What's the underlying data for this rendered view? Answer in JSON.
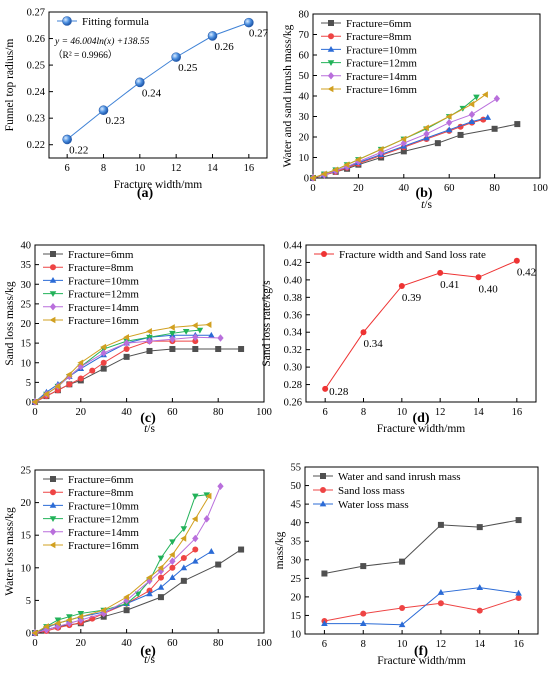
{
  "chart_data": [
    {
      "panel": "(a)",
      "type": "line",
      "xlabel": "Fracture width/mm",
      "ylabel": "Funnel top radius/m",
      "xlim": [
        5,
        17
      ],
      "ylim": [
        0.215,
        0.27
      ],
      "xticks": [
        6,
        8,
        10,
        12,
        14,
        16
      ],
      "yticks": [
        0.22,
        0.23,
        0.24,
        0.25,
        0.26,
        0.27
      ],
      "ytick_decimals": 2,
      "grid": false,
      "legend_position": "top-left",
      "series": [
        {
          "name": "Fitting formula",
          "color": "#3f82d6",
          "marker": "sphere",
          "x": [
            6,
            8,
            10,
            12,
            14,
            16
          ],
          "y": [
            0.222,
            0.233,
            0.2435,
            0.253,
            0.261,
            0.266
          ],
          "labels": [
            "0.22",
            "0.23",
            "0.24",
            "0.25",
            "0.26",
            "0.27"
          ]
        }
      ],
      "equation": "y = 46.004ln(x) +138.55",
      "r2": "（R² = 0.9966）"
    },
    {
      "panel": "(b)",
      "type": "line",
      "xlabel": "t/s",
      "ylabel": "Water and sand inrush mass/kg",
      "xlim": [
        0,
        100
      ],
      "ylim": [
        0,
        80
      ],
      "xticks": [
        0,
        20,
        40,
        60,
        80,
        100
      ],
      "yticks": [
        0,
        10,
        20,
        30,
        40,
        50,
        60,
        70,
        80
      ],
      "ytick_decimals": 0,
      "grid": false,
      "legend_position": "top-left",
      "series": [
        {
          "name": "Fracture=6mm",
          "color": "#505050",
          "marker": "square",
          "x": [
            0,
            5,
            10,
            15,
            20,
            30,
            40,
            55,
            65,
            80,
            90
          ],
          "y": [
            0,
            1.5,
            3,
            4.5,
            6.5,
            10,
            13,
            17,
            21,
            24,
            26.3
          ]
        },
        {
          "name": "Fracture=8mm",
          "color": "#ee4444",
          "marker": "circle",
          "x": [
            0,
            5,
            10,
            15,
            20,
            30,
            40,
            50,
            60,
            65,
            70,
            75
          ],
          "y": [
            0,
            1.5,
            3,
            5,
            7,
            11,
            15,
            19,
            23,
            25,
            27,
            28.5
          ]
        },
        {
          "name": "Fracture=10mm",
          "color": "#2b6bd6",
          "marker": "triangle",
          "x": [
            0,
            5,
            10,
            15,
            20,
            30,
            40,
            50,
            60,
            70,
            77
          ],
          "y": [
            0,
            1.5,
            3.5,
            5.5,
            7.5,
            11.5,
            15.5,
            19.5,
            23.5,
            27.5,
            29.5
          ]
        },
        {
          "name": "Fracture=12mm",
          "color": "#22b259",
          "marker": "triangle-down",
          "x": [
            0,
            5,
            10,
            15,
            20,
            30,
            40,
            50,
            60,
            66,
            72
          ],
          "y": [
            0,
            2,
            4,
            6.5,
            9,
            14,
            19,
            24,
            30,
            34,
            39.5
          ]
        },
        {
          "name": "Fracture=14mm",
          "color": "#b96fdc",
          "marker": "diamond",
          "x": [
            0,
            5,
            10,
            15,
            20,
            30,
            40,
            50,
            60,
            70,
            81
          ],
          "y": [
            0,
            1.5,
            3.5,
            5.5,
            8,
            12.5,
            17,
            21.5,
            27,
            31,
            38.7
          ]
        },
        {
          "name": "Fracture=16mm",
          "color": "#d1a020",
          "marker": "triangle-left",
          "x": [
            0,
            5,
            10,
            15,
            20,
            30,
            40,
            50,
            60,
            70,
            76
          ],
          "y": [
            0,
            2,
            4,
            6.5,
            9,
            14,
            19,
            24.5,
            30,
            36,
            40.7
          ]
        }
      ]
    },
    {
      "panel": "(c)",
      "type": "line",
      "xlabel": "t/s",
      "ylabel": "Sand loss mass/kg",
      "xlim": [
        0,
        100
      ],
      "ylim": [
        0,
        40
      ],
      "xticks": [
        0,
        20,
        40,
        60,
        80,
        100
      ],
      "yticks": [
        0,
        5,
        10,
        15,
        20,
        25,
        30,
        35,
        40
      ],
      "ytick_decimals": 0,
      "grid": false,
      "legend_position": "top-left",
      "series": [
        {
          "name": "Fracture=6mm",
          "color": "#505050",
          "marker": "square",
          "x": [
            0,
            5,
            10,
            15,
            20,
            30,
            40,
            50,
            60,
            70,
            80,
            90
          ],
          "y": [
            0,
            1.5,
            3,
            4.5,
            5.5,
            8.5,
            11.5,
            13,
            13.5,
            13.5,
            13.5,
            13.5
          ]
        },
        {
          "name": "Fracture=8mm",
          "color": "#ee4444",
          "marker": "circle",
          "x": [
            0,
            5,
            10,
            15,
            20,
            25,
            30,
            40,
            50,
            60,
            70
          ],
          "y": [
            0,
            1.5,
            3,
            4.5,
            6,
            8,
            10,
            13.5,
            15.5,
            15.5,
            15.5
          ]
        },
        {
          "name": "Fracture=10mm",
          "color": "#2b6bd6",
          "marker": "triangle",
          "x": [
            0,
            5,
            10,
            15,
            20,
            30,
            40,
            50,
            60,
            70,
            77
          ],
          "y": [
            0,
            2.5,
            4.5,
            6.5,
            8.5,
            12,
            15,
            16.5,
            17,
            17,
            17
          ]
        },
        {
          "name": "Fracture=12mm",
          "color": "#22b259",
          "marker": "triangle-down",
          "x": [
            0,
            5,
            10,
            15,
            20,
            30,
            40,
            50,
            60,
            66,
            72
          ],
          "y": [
            0,
            2,
            4,
            6.5,
            9,
            13.5,
            15.5,
            16.5,
            17.5,
            18,
            18.3
          ]
        },
        {
          "name": "Fracture=14mm",
          "color": "#b96fdc",
          "marker": "diamond",
          "x": [
            0,
            5,
            10,
            15,
            20,
            30,
            40,
            50,
            60,
            70,
            81
          ],
          "y": [
            0,
            2,
            4,
            6.5,
            9,
            12.5,
            15,
            15.5,
            16,
            16.5,
            16.3
          ]
        },
        {
          "name": "Fracture=16mm",
          "color": "#d1a020",
          "marker": "triangle-left",
          "x": [
            0,
            5,
            10,
            15,
            20,
            30,
            40,
            50,
            60,
            70,
            76
          ],
          "y": [
            0,
            2,
            4,
            7,
            10,
            14,
            16.5,
            18,
            19,
            19.5,
            19.7
          ]
        }
      ]
    },
    {
      "panel": "(d)",
      "type": "line",
      "xlabel": "Fracture width/mm",
      "ylabel": "Sand loss rate/kg/s",
      "xlim": [
        5,
        17
      ],
      "ylim": [
        0.26,
        0.44
      ],
      "xticks": [
        6,
        8,
        10,
        12,
        14,
        16
      ],
      "yticks": [
        0.26,
        0.28,
        0.3,
        0.32,
        0.34,
        0.36,
        0.38,
        0.4,
        0.42,
        0.44
      ],
      "ytick_decimals": 2,
      "grid": false,
      "legend_position": "top-left",
      "series": [
        {
          "name": "Fracture width and Sand loss rate",
          "color": "#ee3333",
          "marker": "circle",
          "x": [
            6,
            8,
            10,
            12,
            14,
            16
          ],
          "y": [
            0.275,
            0.34,
            0.393,
            0.408,
            0.403,
            0.422
          ],
          "labels": [
            "0.28",
            "0.34",
            "0.39",
            "0.41",
            "0.40",
            "0.42"
          ]
        }
      ]
    },
    {
      "panel": "(e)",
      "type": "line",
      "xlabel": "t/s",
      "ylabel": "Water loss mass/kg",
      "xlim": [
        0,
        100
      ],
      "ylim": [
        0,
        25
      ],
      "xticks": [
        0,
        20,
        40,
        60,
        80,
        100
      ],
      "yticks": [
        0,
        5,
        10,
        15,
        20,
        25
      ],
      "ytick_decimals": 0,
      "grid": false,
      "legend_position": "top-left",
      "series": [
        {
          "name": "Fracture=6mm",
          "color": "#505050",
          "marker": "square",
          "x": [
            0,
            5,
            10,
            20,
            30,
            40,
            55,
            65,
            80,
            90
          ],
          "y": [
            0,
            0.5,
            1,
            1.5,
            2.5,
            3.5,
            5.5,
            8,
            10.5,
            12.8
          ]
        },
        {
          "name": "Fracture=8mm",
          "color": "#ee4444",
          "marker": "circle",
          "x": [
            0,
            5,
            10,
            15,
            20,
            25,
            30,
            40,
            50,
            55,
            60,
            65,
            70
          ],
          "y": [
            0,
            0.3,
            0.8,
            1.2,
            1.6,
            2.2,
            3,
            4.5,
            6.5,
            8.5,
            10,
            11.5,
            12.8
          ]
        },
        {
          "name": "Fracture=10mm",
          "color": "#2b6bd6",
          "marker": "triangle",
          "x": [
            0,
            5,
            10,
            15,
            20,
            30,
            40,
            50,
            55,
            60,
            65,
            70,
            77
          ],
          "y": [
            0,
            0.8,
            1.5,
            2,
            2.5,
            3.2,
            4.5,
            6,
            7,
            8.5,
            10,
            11,
            12.5
          ]
        },
        {
          "name": "Fracture=12mm",
          "color": "#22b259",
          "marker": "triangle-down",
          "x": [
            0,
            5,
            10,
            15,
            20,
            30,
            40,
            45,
            50,
            55,
            60,
            65,
            70,
            75
          ],
          "y": [
            0,
            1,
            2,
            2.5,
            3,
            3.5,
            4.5,
            6,
            8,
            11.5,
            14,
            16,
            21,
            21.2
          ]
        },
        {
          "name": "Fracture=14mm",
          "color": "#b96fdc",
          "marker": "diamond",
          "x": [
            0,
            5,
            10,
            15,
            20,
            30,
            40,
            50,
            55,
            60,
            70,
            75,
            81
          ],
          "y": [
            0,
            0.5,
            1,
            1.5,
            2,
            3,
            5,
            8,
            9.5,
            11,
            14.5,
            17.5,
            22.5
          ]
        },
        {
          "name": "Fracture=16mm",
          "color": "#d1a020",
          "marker": "triangle-left",
          "x": [
            0,
            5,
            10,
            15,
            20,
            30,
            40,
            50,
            55,
            60,
            65,
            70,
            76
          ],
          "y": [
            0,
            1,
            1.5,
            2,
            2.5,
            3.5,
            5.5,
            8.5,
            10,
            12,
            14.5,
            17.5,
            21
          ]
        }
      ]
    },
    {
      "panel": "(f)",
      "type": "line",
      "xlabel": "Fracture width/mm",
      "ylabel": "mass/kg",
      "xlim": [
        5,
        17
      ],
      "ylim": [
        10,
        55
      ],
      "xticks": [
        6,
        8,
        10,
        12,
        14,
        16
      ],
      "yticks": [
        10,
        15,
        20,
        25,
        30,
        35,
        40,
        45,
        50,
        55
      ],
      "ytick_decimals": 0,
      "grid": false,
      "legend_position": "top-left",
      "series": [
        {
          "name": "Water and sand inrush mass",
          "color": "#505050",
          "marker": "square",
          "x": [
            6,
            8,
            10,
            12,
            14,
            16
          ],
          "y": [
            26.3,
            28.3,
            29.5,
            39.4,
            38.8,
            40.7
          ]
        },
        {
          "name": "Sand loss mass",
          "color": "#ee4444",
          "marker": "circle",
          "x": [
            6,
            8,
            10,
            12,
            14,
            16
          ],
          "y": [
            13.5,
            15.5,
            17,
            18.3,
            16.3,
            19.7
          ]
        },
        {
          "name": "Water loss mass",
          "color": "#2b6bd6",
          "marker": "triangle",
          "x": [
            6,
            8,
            10,
            12,
            14,
            16
          ],
          "y": [
            12.8,
            12.8,
            12.5,
            21.2,
            22.5,
            21
          ]
        }
      ]
    }
  ]
}
